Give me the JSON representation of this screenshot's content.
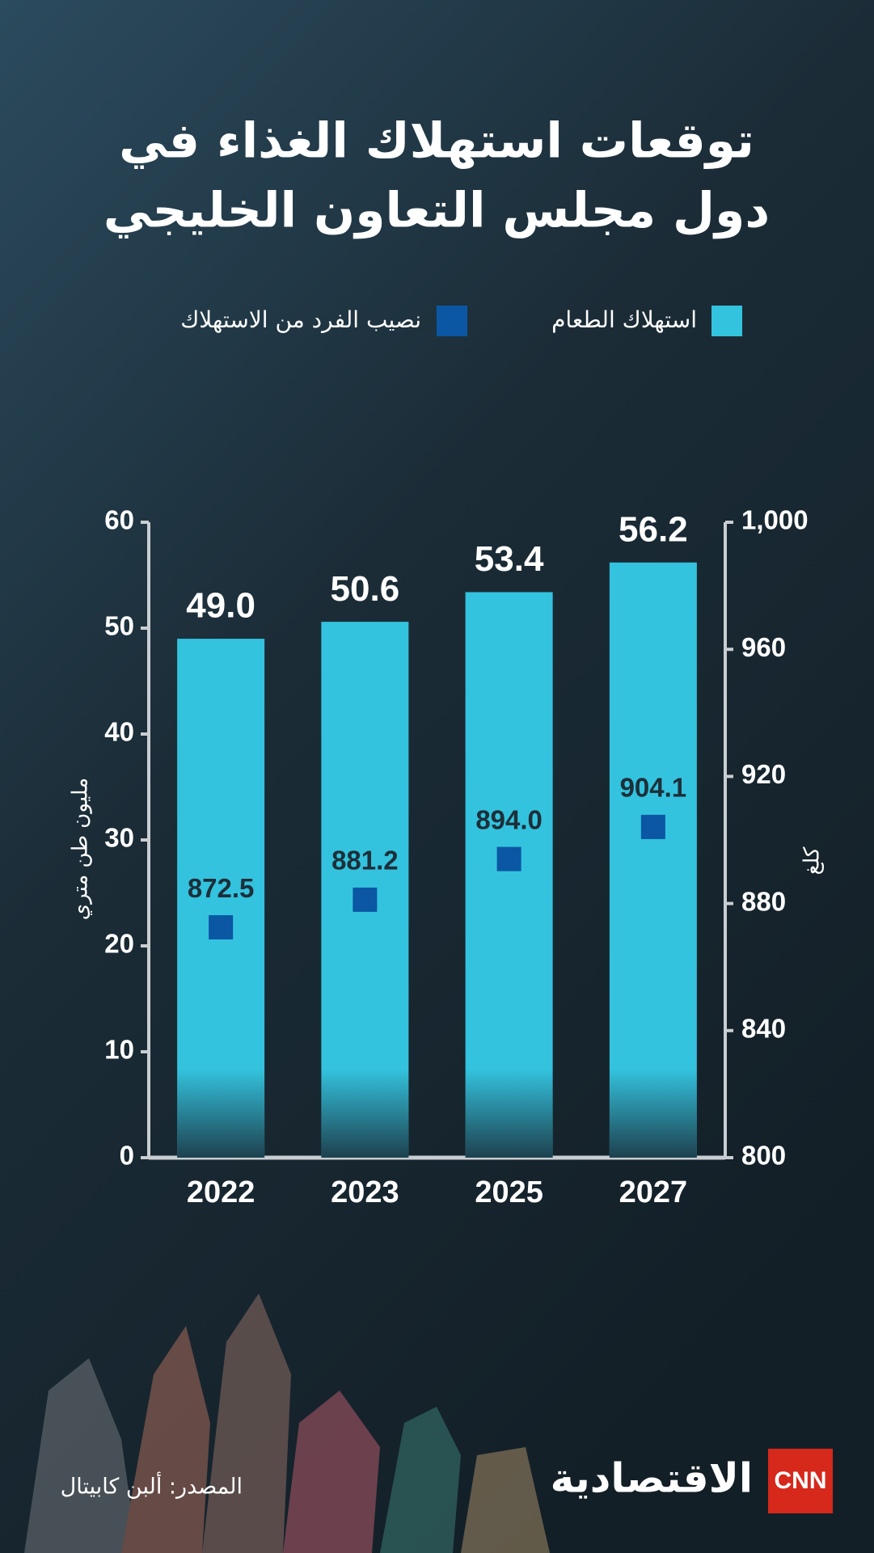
{
  "chart_data": {
    "type": "bar",
    "title": [
      "توقعات استهلاك الغذاء في",
      "دول مجلس التعاون الخليجي"
    ],
    "categories": [
      "2022",
      "2023",
      "2025",
      "2027"
    ],
    "series": [
      {
        "name": "استهلاك الطعام",
        "color": "#33c3de",
        "type": "bar",
        "values": [
          49.0,
          50.6,
          53.4,
          56.2
        ],
        "value_labels": [
          "49.0",
          "50.6",
          "53.4",
          "56.2"
        ]
      },
      {
        "name": "نصيب الفرد من الاستهلاك",
        "color": "#0b57a4",
        "type": "scatter",
        "axis": "y2",
        "values": [
          872.5,
          881.2,
          894.0,
          904.1
        ],
        "value_labels": [
          "872.5",
          "881.2",
          "894.0",
          "904.1"
        ]
      }
    ],
    "ylabel": "مليون طن متري",
    "y2label": "كلغ",
    "ylim": [
      0,
      60
    ],
    "yticks": [
      0,
      10,
      20,
      30,
      40,
      50,
      60
    ],
    "y2lim": [
      800,
      1000
    ],
    "y2ticks": [
      800,
      840,
      880,
      920,
      960,
      {
        "value": 1000,
        "label": "1,000"
      }
    ],
    "source": "المصدر: ألبن كابيتال",
    "brand": [
      "CNN",
      "الاقتصادية"
    ]
  }
}
